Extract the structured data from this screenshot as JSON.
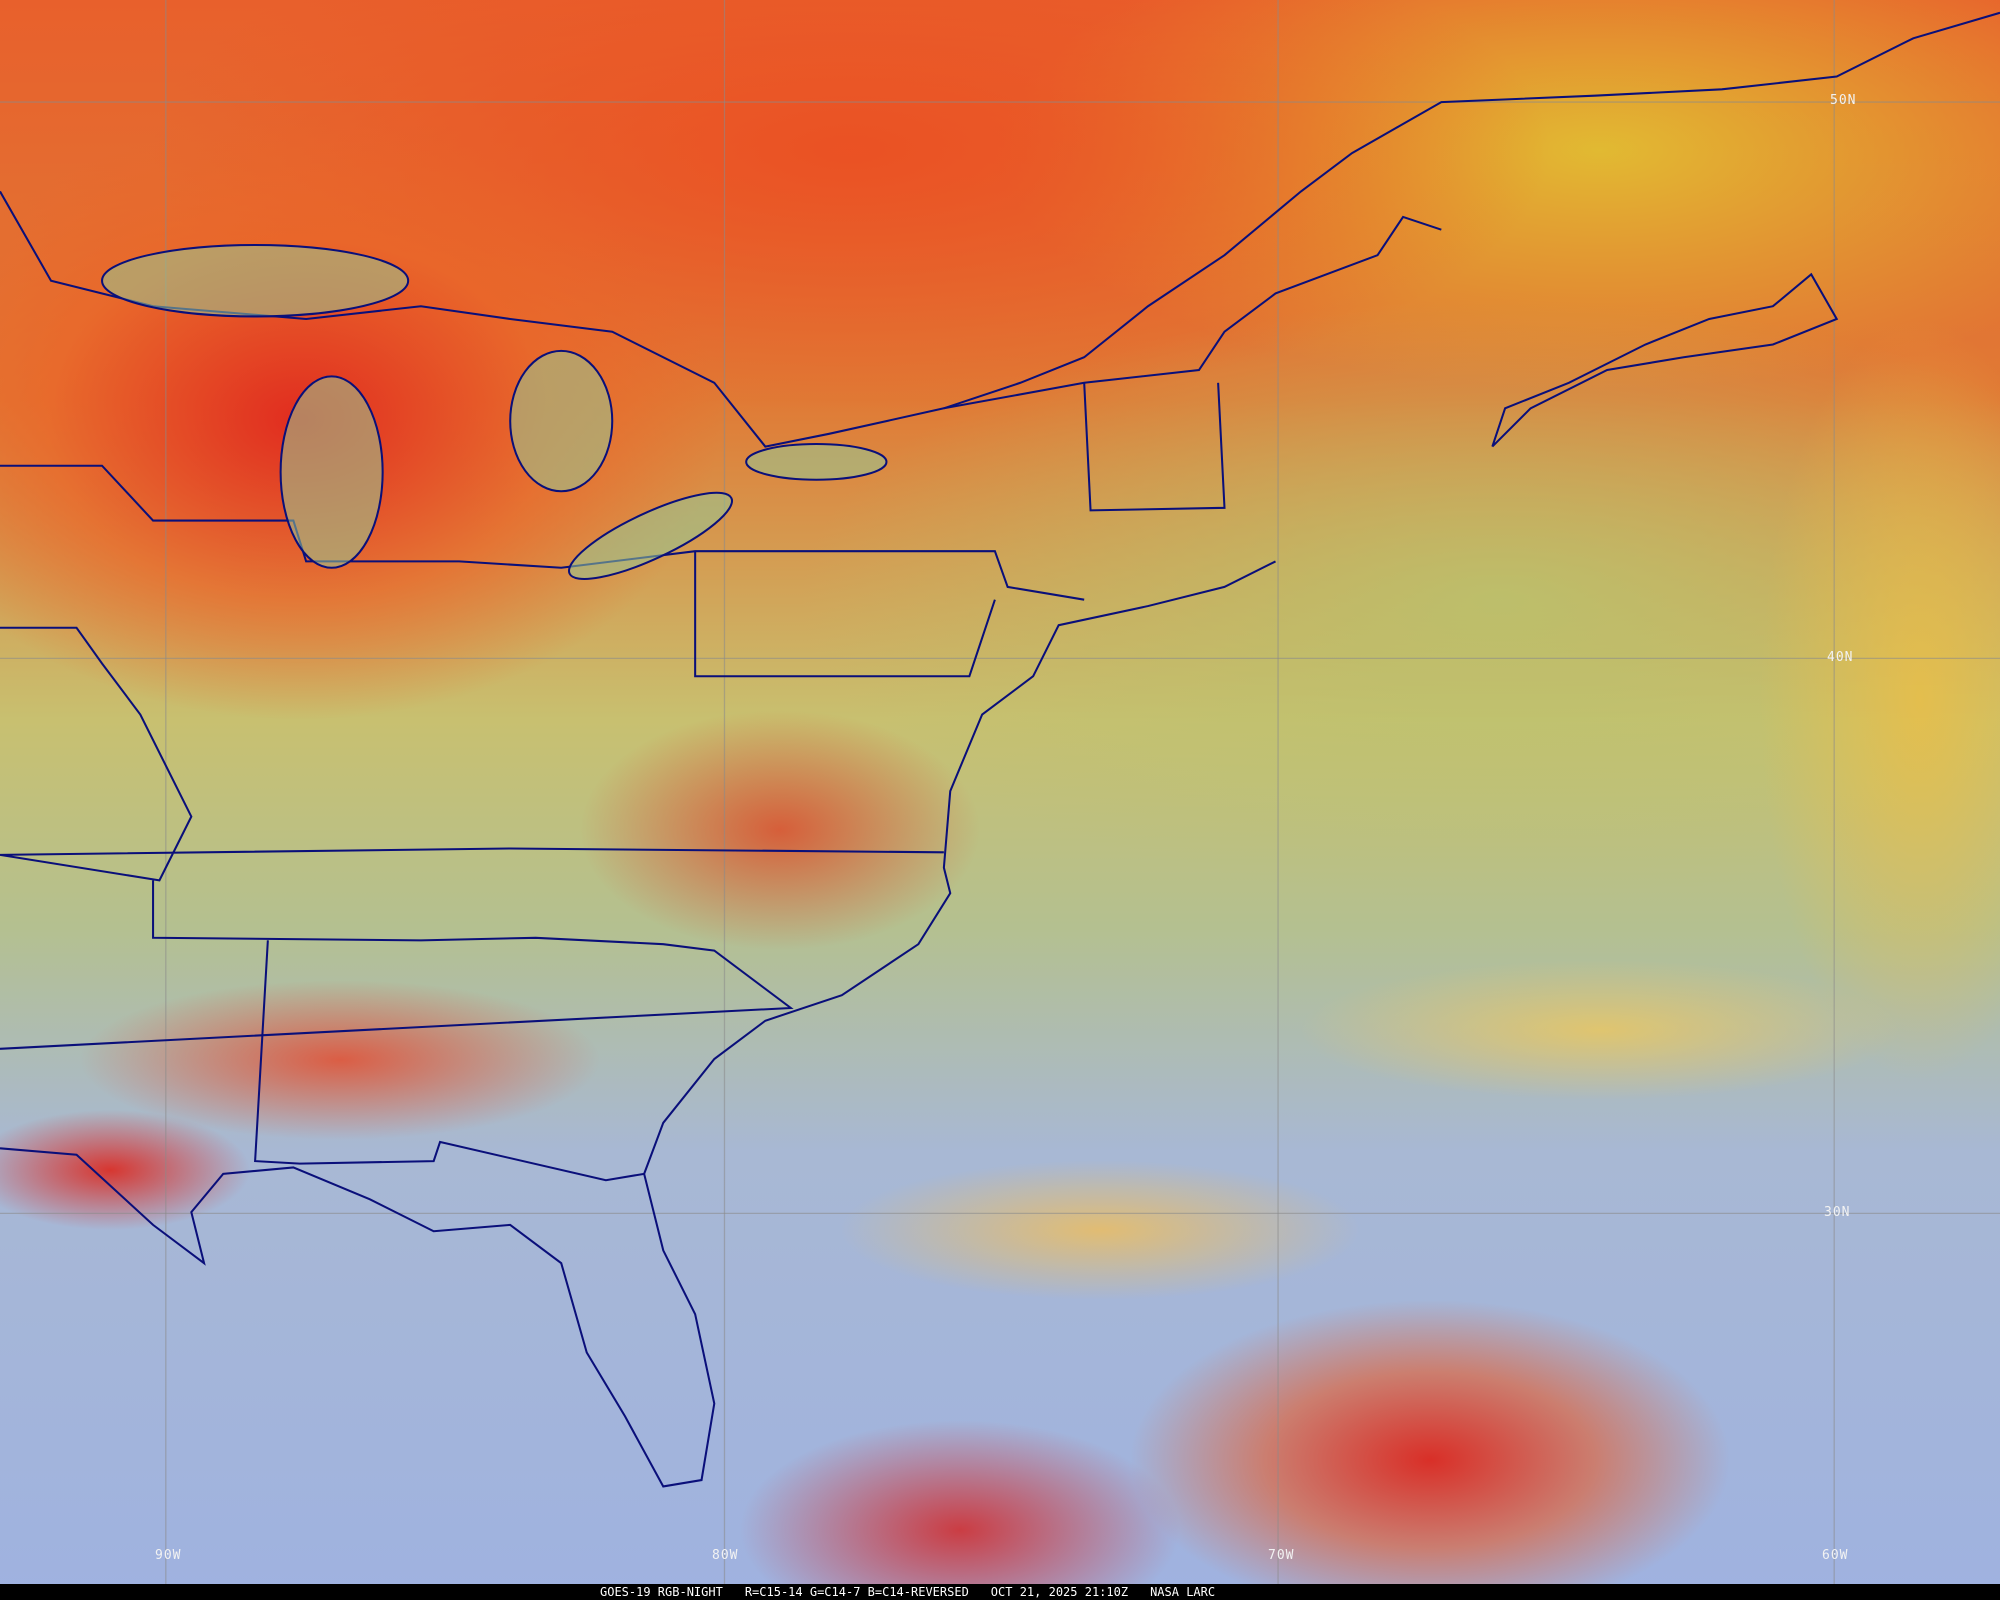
{
  "caption": {
    "satellite": "GOES-19 RGB-NIGHT",
    "channels": "R=C15-14 G=C14-7 B=C14-REVERSED",
    "timestamp": "OCT 21, 2025 21:10Z",
    "source": "NASA LARC"
  },
  "grid_labels": {
    "lat_50": "50N",
    "lat_40": "40N",
    "lat_30": "30N",
    "lon_90": "90W",
    "lon_80": "80W",
    "lon_70": "70W",
    "lon_60": "60W"
  },
  "colors": {
    "borders": "#0a0f7a",
    "cold_cloud": "#e0402a",
    "clear_ocean": "#9fb2e0",
    "low_cloud": "#b8c27a"
  }
}
